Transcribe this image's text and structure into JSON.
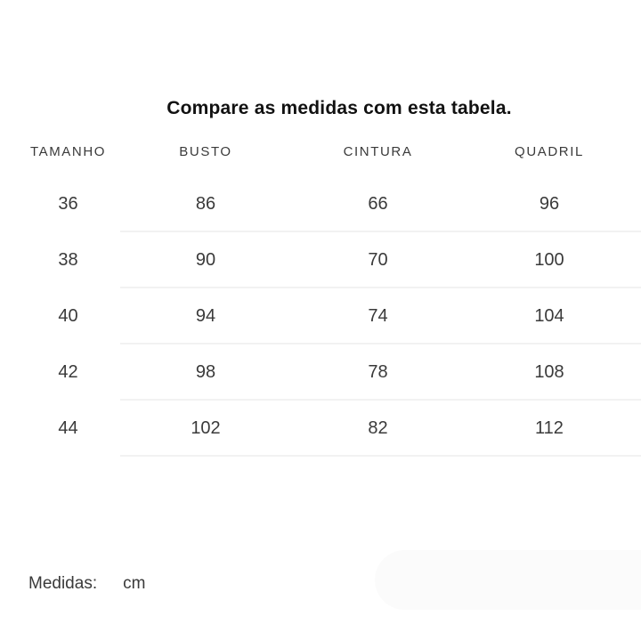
{
  "title": "Compare as medidas com esta tabela.",
  "table": {
    "columns": [
      "TAMANHO",
      "BUSTO",
      "CINTURA",
      "QUADRIL"
    ],
    "rows": [
      [
        "36",
        "86",
        "66",
        "96"
      ],
      [
        "38",
        "90",
        "70",
        "100"
      ],
      [
        "40",
        "94",
        "74",
        "104"
      ],
      [
        "42",
        "98",
        "78",
        "108"
      ],
      [
        "44",
        "102",
        "82",
        "112"
      ]
    ]
  },
  "footer": {
    "label": "Medidas:",
    "unit": "cm"
  },
  "colors": {
    "title_text": "#111111",
    "body_text": "#3a3a3a",
    "divider": "#f2f2f2",
    "pill_background": "#fbfbfb",
    "page_background": "#ffffff"
  }
}
